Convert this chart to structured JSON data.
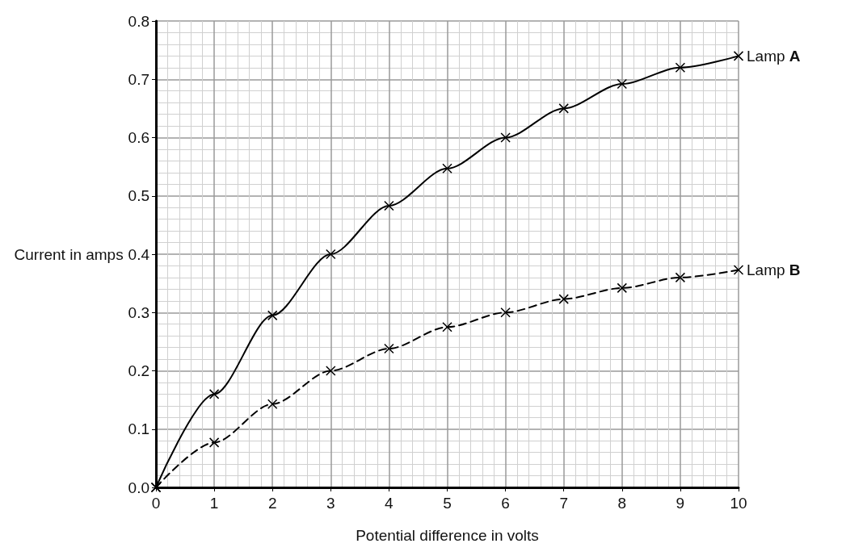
{
  "chart_data": {
    "type": "line",
    "xlabel": "Potential difference in volts",
    "ylabel": "Current in amps",
    "x": [
      0,
      1,
      2,
      3,
      4,
      5,
      6,
      7,
      8,
      9,
      10
    ],
    "series": [
      {
        "name": "Lamp A",
        "color": "#000000",
        "line_style": "solid",
        "values": [
          0,
          0.16,
          0.295,
          0.4,
          0.483,
          0.547,
          0.6,
          0.65,
          0.692,
          0.72,
          0.74
        ]
      },
      {
        "name": "Lamp B",
        "color": "#000000",
        "line_style": "dashed",
        "values": [
          0,
          0.077,
          0.143,
          0.2,
          0.238,
          0.275,
          0.3,
          0.323,
          0.342,
          0.36,
          0.373
        ]
      }
    ],
    "xlim": [
      0,
      10
    ],
    "xticks": [
      0,
      1,
      2,
      3,
      4,
      5,
      6,
      7,
      8,
      9,
      10
    ],
    "ylim": [
      0,
      0.8
    ],
    "yticks": [
      {
        "value": 0,
        "label": "0.0"
      },
      {
        "value": 0.1,
        "label": "0.1"
      },
      {
        "value": 0.2,
        "label": "0.2"
      },
      {
        "value": 0.3,
        "label": "0.3"
      },
      {
        "value": 0.4,
        "label": "0.4"
      },
      {
        "value": 0.5,
        "label": "0.5"
      },
      {
        "value": 0.6,
        "label": "0.6"
      },
      {
        "value": 0.7,
        "label": "0.7"
      },
      {
        "value": 0.8,
        "label": "0.8"
      }
    ],
    "grid": true,
    "marker": "cross",
    "legend": false
  }
}
